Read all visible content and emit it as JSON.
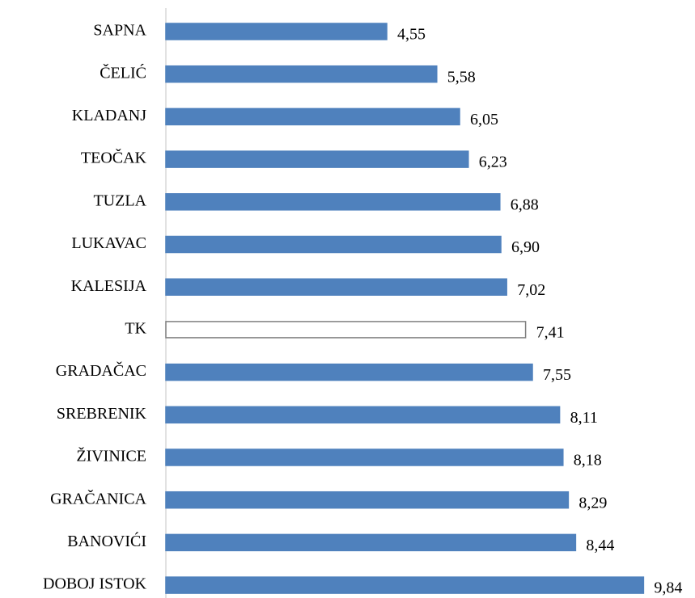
{
  "chart_data": {
    "type": "barh",
    "categories": [
      "SAPNA",
      "ČELIĆ",
      "KLADANJ",
      "TEOČAK",
      "TUZLA",
      "LUKAVAC",
      "KALESIJA",
      "TK",
      "GRADAČAC",
      "SREBRENIK",
      "ŽIVINICE",
      "GRAČANICA",
      "BANOVIĆI",
      "DOBOJ ISTOK"
    ],
    "values": [
      4.55,
      5.58,
      6.05,
      6.23,
      6.88,
      6.9,
      7.02,
      7.41,
      7.55,
      8.11,
      8.18,
      8.29,
      8.44,
      9.84
    ],
    "value_labels": [
      "4,55",
      "5,58",
      "6,05",
      "6,23",
      "6,88",
      "6,90",
      "7,02",
      "7,41",
      "7,55",
      "8,11",
      "8,18",
      "8,29",
      "8,44",
      "9,84"
    ],
    "colors": [
      "#4f81bd",
      "#4f81bd",
      "#4f81bd",
      "#4f81bd",
      "#4f81bd",
      "#4f81bd",
      "#4f81bd",
      "#ffffff",
      "#4f81bd",
      "#4f81bd",
      "#4f81bd",
      "#4f81bd",
      "#4f81bd",
      "#4f81bd"
    ],
    "edge_colors": [
      "#4f81bd",
      "#4f81bd",
      "#4f81bd",
      "#4f81bd",
      "#4f81bd",
      "#4f81bd",
      "#4f81bd",
      "#808080",
      "#4f81bd",
      "#4f81bd",
      "#4f81bd",
      "#4f81bd",
      "#4f81bd",
      "#4f81bd"
    ],
    "xlim": [
      0,
      10
    ]
  }
}
